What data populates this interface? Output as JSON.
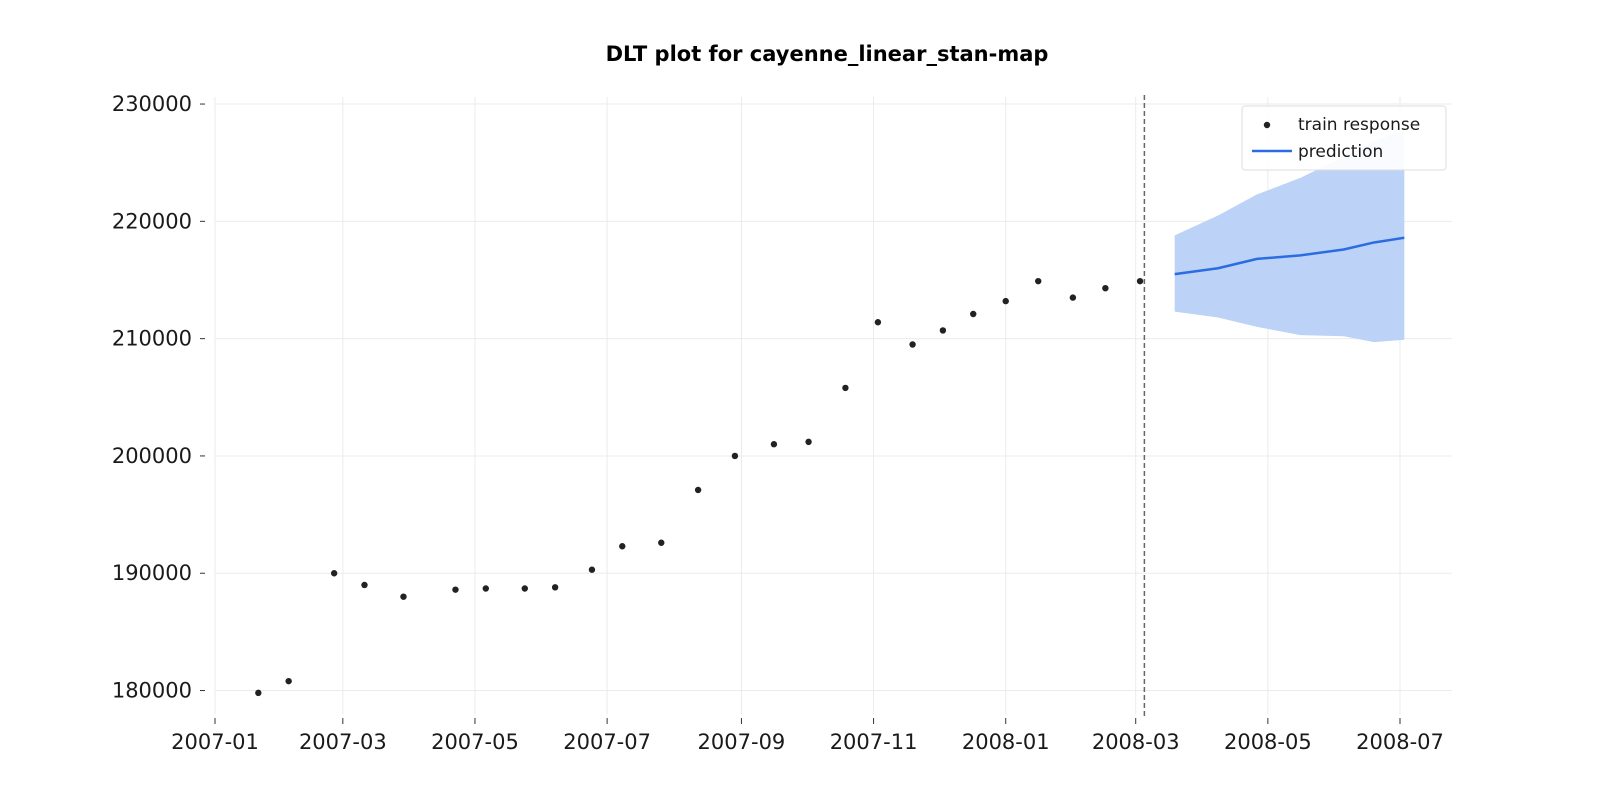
{
  "chart_data": {
    "type": "scatter",
    "title": "DLT plot for cayenne_linear_stan-map",
    "xlabel": "",
    "ylabel": "",
    "x_range": [
      "2007-01-01",
      "2008-07-25"
    ],
    "y_range": [
      178000,
      230600
    ],
    "grid": true,
    "legend_position": "top-right",
    "x_ticks": [
      "2007-01",
      "2007-03",
      "2007-05",
      "2007-07",
      "2007-09",
      "2007-11",
      "2008-01",
      "2008-03",
      "2008-05",
      "2008-07"
    ],
    "y_ticks": [
      180000,
      190000,
      200000,
      210000,
      220000,
      230000
    ],
    "train_cutoff": "2008-03-05",
    "series": [
      {
        "name": "train response",
        "kind": "scatter",
        "color": "#222222",
        "x": [
          "2007-01-21",
          "2007-02-04",
          "2007-02-25",
          "2007-03-11",
          "2007-03-29",
          "2007-04-22",
          "2007-05-06",
          "2007-05-24",
          "2007-06-07",
          "2007-06-24",
          "2007-07-08",
          "2007-07-26",
          "2007-08-12",
          "2007-08-29",
          "2007-09-16",
          "2007-10-02",
          "2007-10-19",
          "2007-11-03",
          "2007-11-19",
          "2007-12-03",
          "2007-12-17",
          "2008-01-01",
          "2008-01-16",
          "2008-02-01",
          "2008-02-16",
          "2008-03-03"
        ],
        "y": [
          179800,
          180800,
          190000,
          189000,
          188000,
          188600,
          188700,
          188700,
          188800,
          190300,
          192300,
          192600,
          197100,
          200000,
          201000,
          201200,
          205800,
          211400,
          209500,
          210700,
          212100,
          213200,
          214900,
          213500,
          214300,
          214900
        ]
      },
      {
        "name": "prediction",
        "kind": "line",
        "color": "#2b6ce0",
        "band_color": "#bcd2f7",
        "x": [
          "2008-03-19",
          "2008-04-08",
          "2008-04-26",
          "2008-05-16",
          "2008-06-05",
          "2008-06-19",
          "2008-07-03"
        ],
        "y": [
          215500,
          216000,
          216800,
          217100,
          217600,
          218200,
          218600
        ],
        "lower": [
          212300,
          211800,
          211000,
          210300,
          210200,
          209700,
          209900
        ],
        "upper": [
          218800,
          220500,
          222300,
          223700,
          225500,
          226800,
          227800
        ]
      }
    ]
  }
}
